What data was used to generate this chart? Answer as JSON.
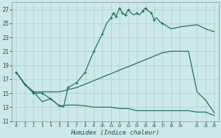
{
  "xlabel": "Humidex (Indice chaleur)",
  "bg_color": "#cce8e8",
  "grid_color": "#aacccc",
  "line_color": "#1a6b60",
  "xlim": [
    -0.5,
    23.5
  ],
  "ylim": [
    11,
    28
  ],
  "xtick_vals": [
    0,
    1,
    2,
    3,
    4,
    5,
    6,
    7,
    8,
    9,
    10,
    11,
    12,
    13,
    14,
    15,
    16,
    17,
    18,
    19,
    21,
    22,
    23
  ],
  "ytick_vals": [
    11,
    13,
    15,
    17,
    19,
    21,
    23,
    25,
    27
  ],
  "curve1_x": [
    0,
    1,
    2,
    3,
    4,
    5,
    5.5,
    6,
    7,
    8,
    9,
    10,
    10.5,
    11,
    11.3,
    11.6,
    12,
    12.3,
    12.7,
    13,
    13.3,
    13.7,
    14,
    14.3,
    14.7,
    15,
    15.3,
    15.7,
    16,
    16.3,
    16.7,
    17,
    18,
    19,
    21,
    22,
    23
  ],
  "curve1_y": [
    18.0,
    16.3,
    15.0,
    15.0,
    14.2,
    13.2,
    13.0,
    15.8,
    16.5,
    18.0,
    21.0,
    23.5,
    25.0,
    25.8,
    26.5,
    26.0,
    27.2,
    26.5,
    26.2,
    27.0,
    26.5,
    26.2,
    26.5,
    26.2,
    26.8,
    27.2,
    26.8,
    26.5,
    25.5,
    25.8,
    25.2,
    25.0,
    24.2,
    24.5,
    24.8,
    24.2,
    23.8
  ],
  "markers1_x": [
    0,
    1,
    2,
    3,
    4,
    5,
    6,
    7,
    8,
    9,
    10,
    11,
    11.3,
    11.6,
    12,
    12.3,
    12.7,
    13,
    14,
    14.7,
    15,
    15.7,
    16,
    17
  ],
  "markers1_y": [
    18.0,
    16.3,
    15.0,
    15.0,
    14.2,
    13.2,
    15.8,
    16.5,
    18.0,
    21.0,
    23.5,
    25.8,
    26.5,
    26.0,
    27.2,
    26.5,
    26.2,
    27.0,
    26.5,
    26.8,
    27.2,
    26.5,
    25.5,
    25.0
  ],
  "curve2_x": [
    0,
    1,
    2,
    3,
    4,
    5,
    6,
    7,
    8,
    9,
    10,
    11,
    12,
    13,
    14,
    15,
    16,
    17,
    18,
    19,
    20,
    21,
    22,
    23
  ],
  "curve2_y": [
    18.0,
    16.3,
    15.2,
    15.2,
    15.2,
    15.2,
    15.5,
    15.8,
    16.3,
    16.8,
    17.3,
    17.8,
    18.3,
    18.8,
    19.3,
    19.8,
    20.3,
    20.8,
    21.0,
    21.0,
    21.0,
    15.2,
    14.0,
    12.2
  ],
  "curve3_x": [
    0,
    1,
    2,
    3,
    4,
    5,
    6,
    7,
    8,
    9,
    10,
    11,
    12,
    13,
    14,
    15,
    16,
    17,
    18,
    19,
    20,
    21,
    22,
    23
  ],
  "curve3_y": [
    18.0,
    16.2,
    15.2,
    13.8,
    14.2,
    13.2,
    13.3,
    13.3,
    13.2,
    13.0,
    13.0,
    13.0,
    12.8,
    12.8,
    12.5,
    12.5,
    12.5,
    12.5,
    12.5,
    12.5,
    12.5,
    12.3,
    12.3,
    11.8
  ]
}
